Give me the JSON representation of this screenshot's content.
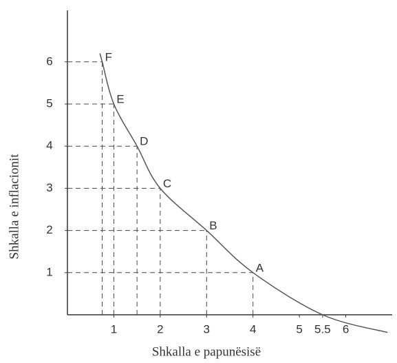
{
  "chart_data": {
    "type": "line",
    "xlabel": "Shkalla e papunësisë",
    "ylabel": "Shkalla e inflacionit",
    "xlim": [
      0,
      7
    ],
    "ylim": [
      0,
      6.5
    ],
    "xticks": [
      1,
      2,
      3,
      4,
      5,
      5.5,
      6
    ],
    "yticks": [
      1,
      2,
      3,
      4,
      5,
      6
    ],
    "series": [
      {
        "color": "#555555",
        "x": [
          0.7,
          0.75,
          1,
          1.5,
          2,
          3,
          4,
          5.5,
          6.9
        ],
        "values": [
          6.2,
          6,
          5,
          4,
          3,
          2,
          1,
          0,
          -0.42
        ],
        "labels": [
          null,
          "F",
          "E",
          "D",
          "C",
          "B",
          "A",
          null,
          null
        ]
      }
    ]
  }
}
